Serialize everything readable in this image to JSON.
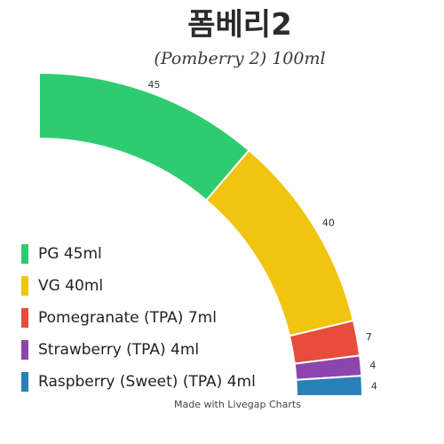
{
  "chart_data": {
    "type": "pie",
    "title": "폼베리2",
    "subtitle": "(Pomberry 2) 100ml",
    "categories": [
      "PG 45ml",
      "VG 40ml",
      "Pomegranate (TPA) 7ml",
      "Strawberry (TPA) 4ml",
      "Raspberry (Sweet) (TPA) 4ml"
    ],
    "values": [
      45,
      40,
      7,
      4,
      4
    ],
    "data_labels": [
      "45",
      "40",
      "7",
      "4",
      "4"
    ],
    "colors": [
      "#2ecc71",
      "#f1c40f",
      "#e74c3c",
      "#8e44ad",
      "#2980b9"
    ],
    "legend": "left",
    "credit": "Made with Livegap Charts"
  }
}
